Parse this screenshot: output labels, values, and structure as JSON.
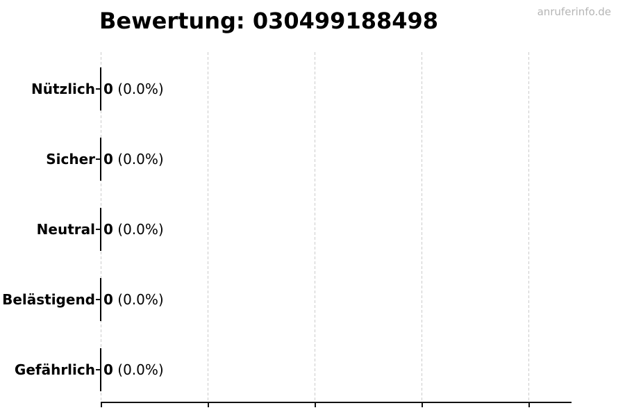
{
  "watermark": "anruferinfo.de",
  "colors": {
    "background": "#ffffff",
    "text": "#000000",
    "grid": "#cbcbcb",
    "axis": "#111111",
    "bar_edge": "#000000",
    "watermark": "#b5b5b5"
  },
  "chart_data": {
    "type": "bar",
    "orientation": "horizontal",
    "title": "Bewertung: 030499188498",
    "categories": [
      "Nützlich",
      "Sicher",
      "Neutral",
      "Belästigend",
      "Gefährlich"
    ],
    "values": [
      0,
      0,
      0,
      0,
      0
    ],
    "percent_labels": [
      "(0.0%)",
      "(0.0%)",
      "(0.0%)",
      "(0.0%)",
      "(0.0%)"
    ],
    "value_label_format": "<count> (<percent>)",
    "xlabel": "",
    "ylabel": "",
    "xlim": [
      0,
      4.4
    ],
    "x_gridlines": [
      0,
      1,
      2,
      3,
      4
    ],
    "x_tick_labels": [],
    "grid": true,
    "legend": false,
    "bars_have_zero_width": true
  }
}
